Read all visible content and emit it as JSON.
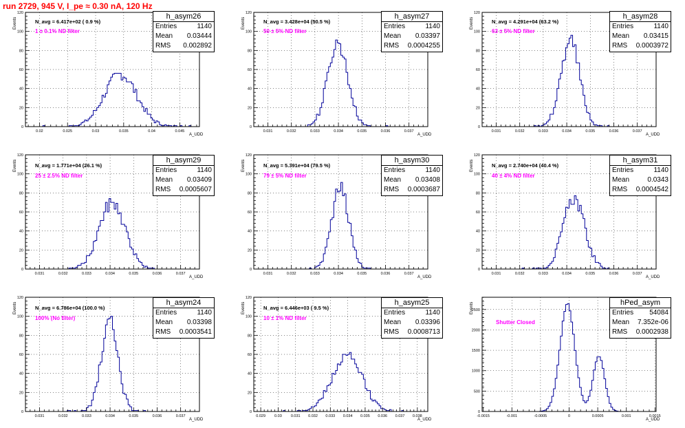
{
  "page_title": "run 2729,   945 V, I_pe ≈ 0.30 nA, 120 Hz",
  "chart_data": [
    {
      "type": "histogram",
      "name": "h_asym26",
      "stats": {
        "entries_label": "Entries",
        "entries": "1140",
        "mean_label": "Mean",
        "mean": "0.03444",
        "rms_label": "RMS",
        "rms": "0.002892"
      },
      "annotation": "N_avg = 6.417e+02 ( 0.9 %)",
      "filter_label": "1 ± 0.1% ND filter",
      "ylabel": "Events",
      "xlabel": "A_UDD",
      "xlim": [
        0.0175,
        0.0485
      ],
      "ylim": [
        0,
        120
      ],
      "yticks": [
        0,
        20,
        40,
        60,
        80,
        100,
        120
      ],
      "xticks": [
        0.02,
        0.025,
        0.03,
        0.035,
        0.04,
        0.045
      ],
      "xtick_labels": [
        "0.02",
        "0.025",
        "0.03",
        "0.035",
        "0.04",
        "0.045"
      ],
      "mu": 0.03444,
      "sigma": 0.0029,
      "peak": 55,
      "entries": 1140
    },
    {
      "type": "histogram",
      "name": "h_asym27",
      "stats": {
        "entries_label": "Entries",
        "entries": "1140",
        "mean_label": "Mean",
        "mean": "0.03397",
        "rms_label": "RMS",
        "rms": "0.0004255"
      },
      "annotation": "N_avg = 3.428e+04 (50.5 %)",
      "filter_label": "50 ± 5% ND filter",
      "ylabel": "Events",
      "xlabel": "A_UDD",
      "xlim": [
        0.0304,
        0.0378
      ],
      "ylim": [
        0,
        120
      ],
      "yticks": [
        0,
        20,
        40,
        60,
        80,
        100,
        120
      ],
      "xticks": [
        0.031,
        0.032,
        0.033,
        0.034,
        0.035,
        0.036,
        0.037
      ],
      "xtick_labels": [
        "0.031",
        "0.032",
        "0.033",
        "0.034",
        "0.035",
        "0.036",
        "0.037"
      ],
      "mu": 0.03397,
      "sigma": 0.000425,
      "peak": 88,
      "entries": 1140
    },
    {
      "type": "histogram",
      "name": "h_asym28",
      "stats": {
        "entries_label": "Entries",
        "entries": "1140",
        "mean_label": "Mean",
        "mean": "0.03415",
        "rms_label": "RMS",
        "rms": "0.0003972"
      },
      "annotation": "N_avg = 4.291e+04 (63.2 %)",
      "filter_label": "63 ± 5% ND filter",
      "ylabel": "Events",
      "xlabel": "A_UDD",
      "xlim": [
        0.0304,
        0.0378
      ],
      "ylim": [
        0,
        120
      ],
      "yticks": [
        0,
        20,
        40,
        60,
        80,
        100,
        120
      ],
      "xticks": [
        0.031,
        0.032,
        0.033,
        0.034,
        0.035,
        0.036,
        0.037
      ],
      "xtick_labels": [
        "0.031",
        "0.032",
        "0.033",
        "0.034",
        "0.035",
        "0.036",
        "0.037"
      ],
      "mu": 0.03415,
      "sigma": 0.000397,
      "peak": 92,
      "entries": 1140
    },
    {
      "type": "histogram",
      "name": "h_asym29",
      "stats": {
        "entries_label": "Entries",
        "entries": "1140",
        "mean_label": "Mean",
        "mean": "0.03409",
        "rms_label": "RMS",
        "rms": "0.0005607"
      },
      "annotation": "N_avg = 1.771e+04 (26.1 %)",
      "filter_label": "25 ± 2.5% ND filter",
      "ylabel": "Events",
      "xlabel": "A_UDD",
      "xlim": [
        0.0304,
        0.0378
      ],
      "ylim": [
        0,
        120
      ],
      "yticks": [
        0,
        20,
        40,
        60,
        80,
        100,
        120
      ],
      "xticks": [
        0.031,
        0.032,
        0.033,
        0.034,
        0.035,
        0.036,
        0.037
      ],
      "xtick_labels": [
        "0.031",
        "0.032",
        "0.033",
        "0.034",
        "0.035",
        "0.036",
        "0.037"
      ],
      "mu": 0.03409,
      "sigma": 0.00056,
      "peak": 70,
      "entries": 1140
    },
    {
      "type": "histogram",
      "name": "h_asym30",
      "stats": {
        "entries_label": "Entries",
        "entries": "1140",
        "mean_label": "Mean",
        "mean": "0.03408",
        "rms_label": "RMS",
        "rms": "0.0003687"
      },
      "annotation": "N_avg = 5.391e+04 (79.5 %)",
      "filter_label": "79 ± 5% ND filter",
      "ylabel": "Events",
      "xlabel": "A_UDD",
      "xlim": [
        0.0304,
        0.0378
      ],
      "ylim": [
        0,
        120
      ],
      "yticks": [
        0,
        20,
        40,
        60,
        80,
        100,
        120
      ],
      "xticks": [
        0.031,
        0.032,
        0.033,
        0.034,
        0.035,
        0.036,
        0.037
      ],
      "xtick_labels": [
        "0.031",
        "0.032",
        "0.033",
        "0.034",
        "0.035",
        "0.036",
        "0.037"
      ],
      "mu": 0.03408,
      "sigma": 0.000369,
      "peak": 85,
      "entries": 1140
    },
    {
      "type": "histogram",
      "name": "h_asym31",
      "stats": {
        "entries_label": "Entries",
        "entries": "1140",
        "mean_label": "Mean",
        "mean": "0.0343",
        "rms_label": "RMS",
        "rms": "0.0004542"
      },
      "annotation": "N_avg = 2.740e+04 (40.4 %)",
      "filter_label": "40 ± 4% ND filter",
      "ylabel": "Events",
      "xlabel": "A_UDD",
      "xlim": [
        0.0304,
        0.0378
      ],
      "ylim": [
        0,
        120
      ],
      "yticks": [
        0,
        20,
        40,
        60,
        80,
        100,
        120
      ],
      "xticks": [
        0.031,
        0.032,
        0.033,
        0.034,
        0.035,
        0.036,
        0.037
      ],
      "xtick_labels": [
        "0.031",
        "0.032",
        "0.033",
        "0.034",
        "0.035",
        "0.036",
        "0.037"
      ],
      "mu": 0.0343,
      "sigma": 0.000454,
      "peak": 74,
      "entries": 1140
    },
    {
      "type": "histogram",
      "name": "h_asym24",
      "stats": {
        "entries_label": "Entries",
        "entries": "1140",
        "mean_label": "Mean",
        "mean": "0.03398",
        "rms_label": "RMS",
        "rms": "0.0003541"
      },
      "annotation": "N_avg = 6.786e+04 (100.0 %)",
      "filter_label": "100% (No filter)",
      "ylabel": "Events",
      "xlabel": "A_UDD",
      "xlim": [
        0.0304,
        0.0378
      ],
      "ylim": [
        0,
        120
      ],
      "yticks": [
        0,
        20,
        40,
        60,
        80,
        100,
        120
      ],
      "xticks": [
        0.031,
        0.032,
        0.033,
        0.034,
        0.035,
        0.036,
        0.037
      ],
      "xtick_labels": [
        "0.031",
        "0.032",
        "0.033",
        "0.034",
        "0.035",
        "0.036",
        "0.037"
      ],
      "mu": 0.03398,
      "sigma": 0.000354,
      "peak": 95,
      "entries": 1140
    },
    {
      "type": "histogram",
      "name": "h_asym25",
      "stats": {
        "entries_label": "Entries",
        "entries": "1140",
        "mean_label": "Mean",
        "mean": "0.03396",
        "rms_label": "RMS",
        "rms": "0.0008713"
      },
      "annotation": "N_avg = 6.446e+03 ( 9.5 %)",
      "filter_label": "10 ± 1% ND filter",
      "ylabel": "Events",
      "xlabel": "A_UDD",
      "xlim": [
        0.0286,
        0.0386
      ],
      "ylim": [
        0,
        120
      ],
      "yticks": [
        0,
        20,
        40,
        60,
        80,
        100,
        120
      ],
      "xticks": [
        0.029,
        0.03,
        0.031,
        0.032,
        0.033,
        0.034,
        0.035,
        0.036,
        0.037,
        0.038
      ],
      "xtick_labels": [
        "0.029",
        "0.03",
        "0.031",
        "0.032",
        "0.033",
        "0.034",
        "0.035",
        "0.036",
        "0.037",
        "0.038"
      ],
      "mu": 0.03396,
      "sigma": 0.00087,
      "peak": 58,
      "entries": 1140
    },
    {
      "type": "histogram",
      "name": "hPed_asym",
      "stats": {
        "entries_label": "Entries",
        "entries": "54084",
        "mean_label": "Mean",
        "mean": "7.352e-06",
        "rms_label": "RMS",
        "rms": "0.0002938"
      },
      "annotation": "",
      "filter_label": "Shutter Closed",
      "ylabel": "Events",
      "xlabel": "A_UDD",
      "xlim": [
        -0.00152,
        0.00152
      ],
      "ylim": [
        0,
        2800
      ],
      "yticks": [
        0,
        500,
        1000,
        1500,
        2000,
        2500
      ],
      "xticks": [
        -0.0015,
        -0.001,
        -0.0005,
        0,
        0.0005,
        0.001,
        0.0015
      ],
      "xtick_labels": [
        "-0.0015",
        "-0.001",
        "-0.0005",
        "0",
        "0.0005",
        "0.001",
        "0.0015"
      ],
      "components": [
        {
          "mu": -3e-05,
          "sigma": 0.00013,
          "peak": 2620
        },
        {
          "mu": 0.00052,
          "sigma": 0.0001,
          "peak": 1370
        }
      ]
    }
  ]
}
